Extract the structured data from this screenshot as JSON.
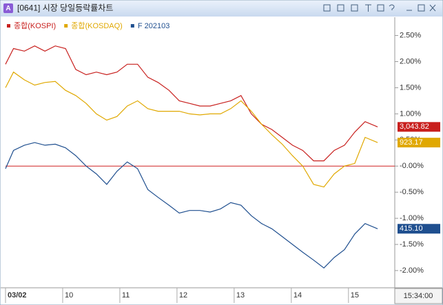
{
  "window": {
    "icon": "A",
    "title": "[0641] 시장 당일등락률차트"
  },
  "chart_data": {
    "type": "line",
    "x": [
      9.0,
      9.14,
      9.33,
      9.51,
      9.69,
      9.87,
      10.05,
      10.23,
      10.41,
      10.59,
      10.77,
      10.95,
      11.13,
      11.31,
      11.49,
      11.67,
      11.86,
      12.04,
      12.22,
      12.4,
      12.58,
      12.76,
      12.94,
      13.12,
      13.3,
      13.48,
      13.66,
      13.84,
      14.02,
      14.2,
      14.39,
      14.57,
      14.75,
      14.93,
      15.11,
      15.29,
      15.51
    ],
    "series": [
      {
        "name": "종합(KOSPI)",
        "color": "#c8201e",
        "last_label": "3,043.82",
        "values": [
          1.95,
          2.25,
          2.2,
          2.3,
          2.2,
          2.3,
          2.25,
          1.85,
          1.75,
          1.8,
          1.75,
          1.8,
          1.95,
          1.95,
          1.7,
          1.6,
          1.45,
          1.25,
          1.2,
          1.15,
          1.15,
          1.2,
          1.25,
          1.35,
          1.0,
          0.8,
          0.7,
          0.55,
          0.4,
          0.3,
          0.1,
          0.1,
          0.3,
          0.4,
          0.65,
          0.85,
          0.75
        ]
      },
      {
        "name": "종합(KOSDAQ)",
        "color": "#e0a800",
        "last_label": "923.17",
        "values": [
          1.5,
          1.8,
          1.65,
          1.55,
          1.6,
          1.62,
          1.45,
          1.35,
          1.2,
          1.0,
          0.88,
          0.95,
          1.15,
          1.25,
          1.1,
          1.05,
          1.05,
          1.05,
          1.0,
          0.98,
          1.0,
          1.0,
          1.1,
          1.25,
          1.05,
          0.8,
          0.6,
          0.42,
          0.2,
          0.0,
          -0.35,
          -0.4,
          -0.15,
          0.0,
          0.05,
          0.55,
          0.45
        ]
      },
      {
        "name": "F 202103",
        "color": "#1f4f8f",
        "last_label": "415.10",
        "values": [
          -0.05,
          0.3,
          0.4,
          0.45,
          0.4,
          0.42,
          0.35,
          0.2,
          0.0,
          -0.15,
          -0.35,
          -0.1,
          0.08,
          -0.05,
          -0.45,
          -0.6,
          -0.75,
          -0.9,
          -0.85,
          -0.85,
          -0.88,
          -0.82,
          -0.7,
          -0.75,
          -0.95,
          -1.1,
          -1.2,
          -1.35,
          -1.5,
          -1.65,
          -1.8,
          -1.95,
          -1.75,
          -1.6,
          -1.3,
          -1.1,
          -1.2
        ]
      }
    ],
    "xlim": [
      9,
      15.81
    ],
    "xticks": [
      {
        "value": 9,
        "label": "03/02"
      },
      10,
      11,
      12,
      13,
      14,
      15
    ],
    "ylim": [
      -2.33,
      2.85
    ],
    "yticks": [
      {
        "value": 2.5,
        "label": "2.50%"
      },
      {
        "value": 2.0,
        "label": "2.00%"
      },
      {
        "value": 1.5,
        "label": "1.50%"
      },
      {
        "value": 1.0,
        "label": "1.00%"
      },
      {
        "value": 0.5,
        "label": "0.50%"
      },
      {
        "value": 0,
        "label": "-0.00%"
      },
      {
        "value": -0.5,
        "label": "-0.50%"
      },
      {
        "value": -1.0,
        "label": "-1.00%"
      },
      {
        "value": -1.5,
        "label": "-1.50%"
      },
      {
        "value": -2.0,
        "label": "-2.00%"
      }
    ],
    "time_label": "15:34:00"
  }
}
